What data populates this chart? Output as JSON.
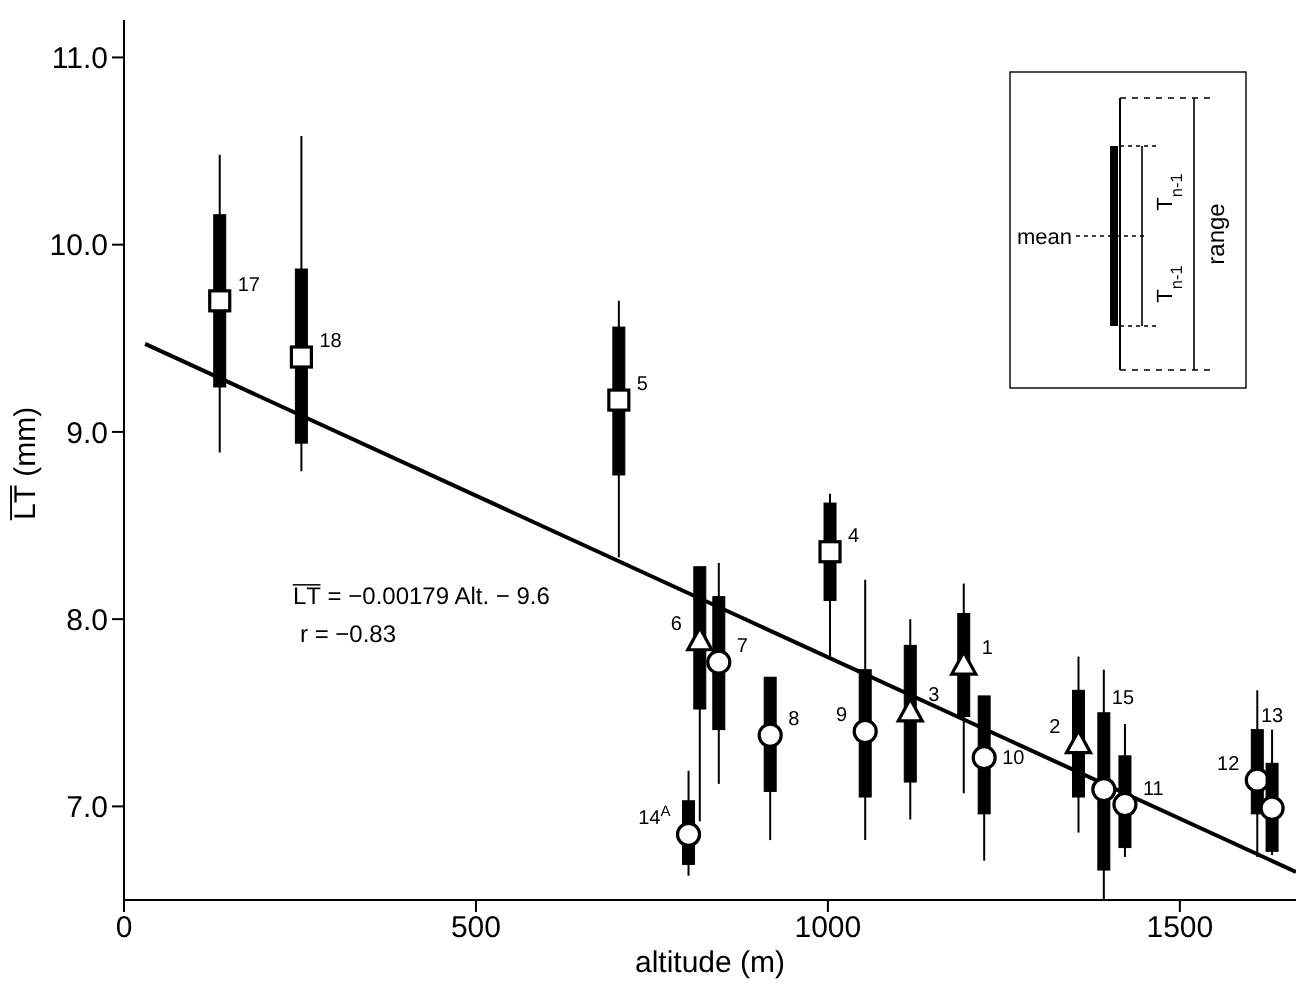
{
  "chart_data": {
    "type": "box",
    "xlabel": "altitude (m)",
    "ylabel": "L̅T̅ (mm)",
    "xlim": [
      0,
      1665
    ],
    "xticks": [
      0,
      500,
      1000,
      1500
    ],
    "ylim": [
      6.5,
      11.2
    ],
    "yticks": [
      {
        "value": 7,
        "label": "7.0"
      },
      {
        "value": 8,
        "label": "8.0"
      },
      {
        "value": 9,
        "label": "9.0"
      },
      {
        "value": 10,
        "label": "10.0"
      },
      {
        "value": 11,
        "label": "11.0"
      }
    ],
    "series": [
      {
        "marker": "square",
        "color": "#000000",
        "x": [
          136,
          252,
          703,
          1003
        ],
        "boxes": [
          {
            "low": 8.89,
            "q1": 9.24,
            "median": 9.7,
            "q3": 10.16,
            "high": 10.48
          },
          {
            "low": 8.79,
            "q1": 8.94,
            "median": 9.4,
            "q3": 9.87,
            "high": 10.58
          },
          {
            "low": 8.33,
            "q1": 8.77,
            "median": 9.17,
            "q3": 9.56,
            "high": 9.7
          },
          {
            "low": 7.8,
            "q1": 8.1,
            "median": 8.36,
            "q3": 8.62,
            "high": 8.67
          }
        ]
      },
      {
        "marker": "triangle",
        "color": "#000000",
        "x": [
          818,
          1117,
          1193,
          1356
        ],
        "boxes": [
          {
            "low": 6.92,
            "q1": 7.52,
            "median": 7.89,
            "q3": 8.28,
            "high": 8.28
          },
          {
            "low": 6.93,
            "q1": 7.13,
            "median": 7.51,
            "q3": 7.86,
            "high": 8.0
          },
          {
            "low": 7.07,
            "q1": 7.48,
            "median": 7.76,
            "q3": 8.03,
            "high": 8.19
          },
          {
            "low": 6.86,
            "q1": 7.05,
            "median": 7.34,
            "q3": 7.62,
            "high": 7.8
          }
        ]
      },
      {
        "marker": "circle",
        "color": "#000000",
        "x": [
          845,
          918,
          1053,
          1222,
          1422,
          1610,
          802,
          1392,
          1631
        ],
        "boxes": [
          {
            "low": 7.12,
            "q1": 7.41,
            "median": 7.77,
            "q3": 8.12,
            "high": 8.3
          },
          {
            "low": 6.82,
            "q1": 7.08,
            "median": 7.38,
            "q3": 7.69,
            "high": 7.69
          },
          {
            "low": 6.82,
            "q1": 7.05,
            "median": 7.4,
            "q3": 7.73,
            "high": 8.21
          },
          {
            "low": 6.71,
            "q1": 6.96,
            "median": 7.26,
            "q3": 7.59,
            "high": 7.59
          },
          {
            "low": 6.73,
            "q1": 6.78,
            "median": 7.01,
            "q3": 7.27,
            "high": 7.44
          },
          {
            "low": 6.73,
            "q1": 6.96,
            "median": 7.14,
            "q3": 7.41,
            "high": 7.62
          },
          {
            "low": 6.63,
            "q1": 6.69,
            "median": 6.85,
            "q3": 7.03,
            "high": 7.19
          },
          {
            "low": 6.5,
            "q1": 6.66,
            "median": 7.09,
            "q3": 7.5,
            "high": 7.73
          },
          {
            "low": 6.74,
            "q1": 6.76,
            "median": 6.99,
            "q3": 7.23,
            "high": 7.41
          }
        ]
      },
      {
        "type": "line",
        "color": "#000000",
        "x": [
          30,
          1665
        ],
        "values": [
          9.47,
          6.65
        ]
      }
    ],
    "annotations": [
      "17",
      "18",
      "5",
      "4",
      "6",
      "3",
      "1",
      "2",
      "7",
      "8",
      "9",
      "10",
      "11",
      "12",
      "14$^{A}$",
      "15",
      "13",
      "L̅T̅ = −0.00179 Alt. − 9.6",
      "r = −0.83",
      "mean",
      "T$_{n-1}$",
      "T$_{n-1}$",
      "range"
    ]
  }
}
